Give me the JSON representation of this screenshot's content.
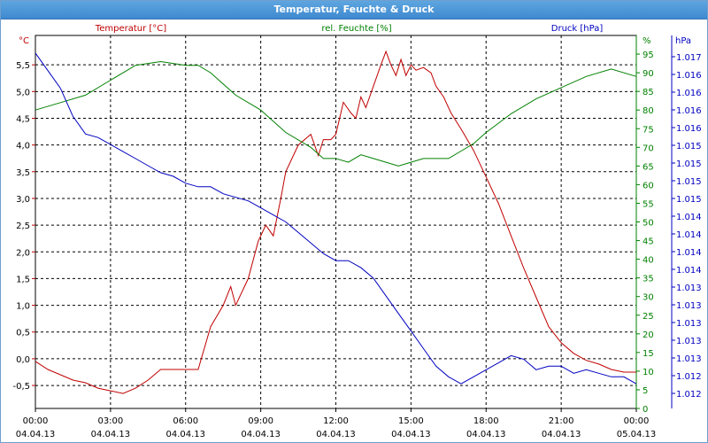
{
  "window": {
    "title": "Temperatur, Feuchte & Druck"
  },
  "colors": {
    "temperature": "#c00000",
    "humidity": "#008000",
    "pressure": "#0000c0",
    "titlebar": "#3f89cf"
  },
  "chart_data": {
    "type": "line",
    "grid": true,
    "legend": "top",
    "series_labels": {
      "temperature": "Temperatur [°C]",
      "humidity": "rel. Feuchte [%]",
      "pressure": "Druck [hPa]"
    },
    "axes": {
      "left": {
        "unit": "°C",
        "range": [
          -0.93,
          6.05
        ],
        "ticks": [
          "-0,5",
          "0,0",
          "0,5",
          "1,0",
          "1,5",
          "2,0",
          "2,5",
          "3,0",
          "3,5",
          "4,0",
          "4,5",
          "5,0",
          "5,5"
        ]
      },
      "right": {
        "unit": "%",
        "range": [
          0,
          100
        ],
        "ticks": [
          "0",
          "5",
          "10",
          "15",
          "20",
          "25",
          "30",
          "35",
          "40",
          "45",
          "50",
          "55",
          "60",
          "65",
          "70",
          "75",
          "80",
          "85",
          "90",
          "95"
        ]
      },
      "far_right": {
        "unit": "hPa",
        "range": [
          1011.85,
          1017.15
        ],
        "ticks": [
          "1.012",
          "1.012",
          "1.013",
          "1.013",
          "1.013",
          "1.013",
          "1.013",
          "1.014",
          "1.014",
          "1.014",
          "1.014",
          "1.015",
          "1.015",
          "1.015",
          "1.015",
          "1.016",
          "1.016",
          "1.016",
          "1.016",
          "1.017"
        ]
      },
      "x": {
        "range_hours": [
          0,
          24
        ],
        "ticks": [
          {
            "time": "00:00",
            "date": "04.04.13"
          },
          {
            "time": "03:00",
            "date": "04.04.13"
          },
          {
            "time": "06:00",
            "date": "04.04.13"
          },
          {
            "time": "09:00",
            "date": "04.04.13"
          },
          {
            "time": "12:00",
            "date": "04.04.13"
          },
          {
            "time": "15:00",
            "date": "04.04.13"
          },
          {
            "time": "18:00",
            "date": "04.04.13"
          },
          {
            "time": "21:00",
            "date": "04.04.13"
          },
          {
            "time": "00:00",
            "date": "05.04.13"
          }
        ]
      }
    },
    "series": [
      {
        "name": "Temperatur [°C]",
        "key": "temperature",
        "axis": "left",
        "x": [
          0,
          0.5,
          1,
          1.5,
          2,
          2.5,
          3,
          3.5,
          4,
          4.5,
          5,
          5.5,
          6,
          6.5,
          7,
          7.5,
          7.8,
          8,
          8.5,
          8.9,
          9.2,
          9.5,
          9.8,
          10,
          10.5,
          11,
          11.3,
          11.5,
          11.8,
          12,
          12.3,
          12.6,
          12.8,
          13,
          13.2,
          13.5,
          13.8,
          14,
          14.2,
          14.4,
          14.6,
          14.8,
          15,
          15.2,
          15.5,
          15.8,
          16,
          16.3,
          16.6,
          17,
          17.5,
          18,
          18.5,
          19,
          19.5,
          20,
          20.5,
          21,
          21.5,
          22,
          22.5,
          23,
          23.5,
          24
        ],
        "y": [
          -0.05,
          -0.2,
          -0.3,
          -0.4,
          -0.45,
          -0.55,
          -0.6,
          -0.65,
          -0.55,
          -0.4,
          -0.2,
          -0.2,
          -0.2,
          -0.2,
          0.6,
          1.0,
          1.35,
          1.0,
          1.5,
          2.2,
          2.5,
          2.3,
          3.0,
          3.5,
          4.0,
          4.2,
          3.8,
          4.1,
          4.1,
          4.2,
          4.8,
          4.6,
          4.5,
          4.9,
          4.7,
          5.1,
          5.5,
          5.75,
          5.5,
          5.3,
          5.6,
          5.3,
          5.5,
          5.4,
          5.45,
          5.35,
          5.1,
          4.9,
          4.6,
          4.3,
          3.9,
          3.4,
          2.9,
          2.3,
          1.7,
          1.15,
          0.6,
          0.3,
          0.1,
          -0.03,
          -0.1,
          -0.2,
          -0.25,
          -0.25
        ]
      },
      {
        "name": "rel. Feuchte [%]",
        "key": "humidity",
        "axis": "right",
        "x": [
          0,
          1,
          2,
          3,
          4,
          5,
          6,
          6.5,
          7,
          8,
          9,
          10,
          11,
          11.5,
          12,
          12.5,
          13,
          13.5,
          14,
          14.5,
          15,
          15.5,
          16,
          16.5,
          17,
          17.5,
          18,
          19,
          20,
          21,
          22,
          23,
          24
        ],
        "y": [
          80,
          82,
          84,
          88,
          92,
          93,
          92,
          92,
          90,
          84,
          80,
          74,
          70,
          67,
          67,
          66,
          68,
          67,
          66,
          65,
          66,
          67,
          67,
          67,
          69,
          71,
          74,
          79,
          83,
          86,
          89,
          91,
          89
        ]
      },
      {
        "name": "Druck [hPa]",
        "key": "pressure",
        "axis": "far_right",
        "x": [
          0,
          0.5,
          1,
          1.5,
          2,
          2.5,
          3,
          3.5,
          4,
          4.5,
          5,
          5.5,
          6,
          6.5,
          7,
          7.5,
          8,
          8.5,
          9,
          9.5,
          10,
          10.5,
          11,
          11.5,
          12,
          12.5,
          13,
          13.5,
          14,
          14.5,
          15,
          15.5,
          16,
          16.5,
          17,
          17.5,
          18,
          18.5,
          19,
          19.5,
          20,
          20.5,
          21,
          21.5,
          22,
          22.5,
          23,
          23.5,
          24
        ],
        "y": [
          1016.9,
          1016.65,
          1016.4,
          1016.0,
          1015.75,
          1015.7,
          1015.6,
          1015.5,
          1015.4,
          1015.3,
          1015.2,
          1015.15,
          1015.05,
          1015.0,
          1015.0,
          1014.9,
          1014.85,
          1014.8,
          1014.7,
          1014.6,
          1014.5,
          1014.35,
          1014.2,
          1014.05,
          1013.95,
          1013.95,
          1013.85,
          1013.7,
          1013.45,
          1013.2,
          1012.95,
          1012.7,
          1012.45,
          1012.3,
          1012.2,
          1012.3,
          1012.4,
          1012.5,
          1012.6,
          1012.55,
          1012.4,
          1012.45,
          1012.45,
          1012.35,
          1012.4,
          1012.35,
          1012.3,
          1012.3,
          1012.2
        ]
      }
    ]
  }
}
